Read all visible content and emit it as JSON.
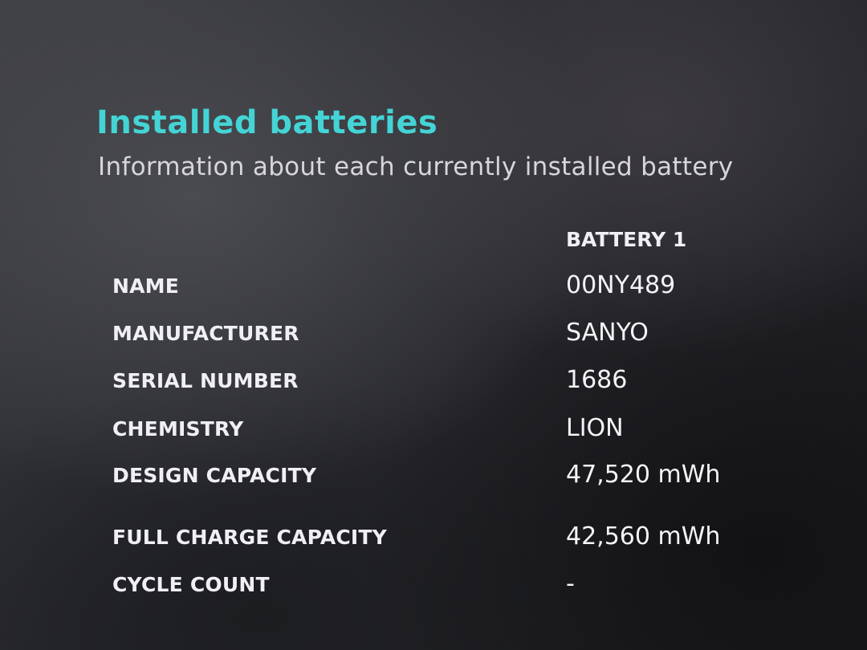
{
  "section": {
    "title": "Installed batteries",
    "subtitle": "Information about each currently installed battery",
    "title_color": "#44d4d6"
  },
  "table": {
    "column_header": "BATTERY 1",
    "rows": [
      {
        "label": "NAME",
        "value": "00NY489"
      },
      {
        "label": "MANUFACTURER",
        "value": "SANYO"
      },
      {
        "label": "SERIAL NUMBER",
        "value": "1686"
      },
      {
        "label": "CHEMISTRY",
        "value": "LION"
      },
      {
        "label": "DESIGN CAPACITY",
        "value": "47,520 mWh"
      },
      {
        "label": "FULL CHARGE CAPACITY",
        "value": "42,560 mWh"
      },
      {
        "label": "CYCLE COUNT",
        "value": "-"
      }
    ]
  }
}
